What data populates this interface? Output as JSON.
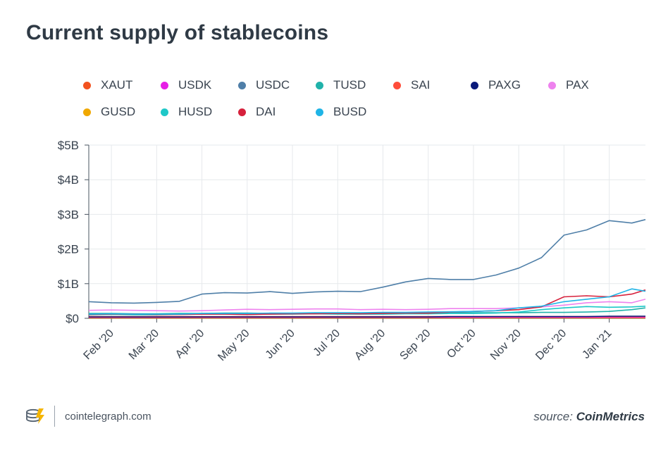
{
  "header": {
    "title": "Current supply of stablecoins"
  },
  "footer": {
    "brand": "cointelegraph.com",
    "source_prefix": "source:",
    "source_name": "CoinMetrics"
  },
  "chart_data": {
    "type": "line",
    "title": "Current supply of stablecoins",
    "xlabel": "",
    "ylabel": "",
    "ylim": [
      0,
      5
    ],
    "y_unit": "billion USD",
    "yticks": [
      0,
      1,
      2,
      3,
      4,
      5
    ],
    "ytick_labels": [
      "$0",
      "$1B",
      "$2B",
      "$3B",
      "$4B",
      "$5B"
    ],
    "xlim": [
      0,
      12.3
    ],
    "xticks": [
      0.5,
      1.5,
      2.5,
      3.5,
      4.5,
      5.5,
      6.5,
      7.5,
      8.5,
      9.5,
      10.5,
      11.5
    ],
    "xtick_labels": [
      "Feb '20",
      "Mar '20",
      "Apr '20",
      "May '20",
      "Jun '20",
      "Jul '20",
      "Aug '20",
      "Sep '20",
      "Oct '20",
      "Nov '20",
      "Dec '20",
      "Jan '21"
    ],
    "grid": true,
    "legend_position": "top",
    "x": [
      0,
      0.5,
      1,
      1.5,
      2,
      2.5,
      3,
      3.5,
      4,
      4.5,
      5,
      5.5,
      6,
      6.5,
      7,
      7.5,
      8,
      8.5,
      9,
      9.5,
      10,
      10.5,
      11,
      11.5,
      12,
      12.3
    ],
    "series": [
      {
        "name": "XAUT",
        "color": "#f2521f",
        "values": [
          0.02,
          0.02,
          0.02,
          0.02,
          0.02,
          0.02,
          0.02,
          0.02,
          0.02,
          0.02,
          0.02,
          0.02,
          0.02,
          0.02,
          0.02,
          0.02,
          0.02,
          0.02,
          0.02,
          0.02,
          0.02,
          0.02,
          0.02,
          0.02,
          0.02,
          0.02
        ]
      },
      {
        "name": "USDK",
        "color": "#e61ee6",
        "values": [
          0.03,
          0.03,
          0.03,
          0.03,
          0.03,
          0.03,
          0.03,
          0.03,
          0.03,
          0.03,
          0.03,
          0.03,
          0.03,
          0.03,
          0.03,
          0.03,
          0.03,
          0.03,
          0.03,
          0.03,
          0.03,
          0.03,
          0.03,
          0.03,
          0.03,
          0.03
        ]
      },
      {
        "name": "USDC",
        "color": "#4f7fa8",
        "values": [
          0.48,
          0.45,
          0.44,
          0.46,
          0.49,
          0.7,
          0.74,
          0.73,
          0.77,
          0.72,
          0.76,
          0.78,
          0.77,
          0.9,
          1.05,
          1.15,
          1.12,
          1.12,
          1.25,
          1.45,
          1.75,
          2.4,
          2.55,
          2.82,
          2.75,
          2.85
        ]
      },
      {
        "name": "TUSD",
        "color": "#20b2aa",
        "values": [
          0.14,
          0.14,
          0.13,
          0.13,
          0.14,
          0.14,
          0.15,
          0.15,
          0.14,
          0.14,
          0.14,
          0.14,
          0.15,
          0.15,
          0.15,
          0.15,
          0.16,
          0.16,
          0.16,
          0.16,
          0.17,
          0.17,
          0.18,
          0.2,
          0.25,
          0.3
        ]
      },
      {
        "name": "SAI",
        "color": "#ff4d3a",
        "values": [
          0.05,
          0.05,
          0.05,
          0.05,
          0.05,
          0.05,
          0.05,
          0.05,
          0.05,
          0.05,
          0.05,
          0.05,
          0.05,
          0.05,
          0.05,
          0.05,
          0.05,
          0.05,
          0.05,
          0.05,
          0.05,
          0.05,
          0.05,
          0.05,
          0.05,
          0.05
        ]
      },
      {
        "name": "PAXG",
        "color": "#0a1a7a",
        "values": [
          0.04,
          0.04,
          0.04,
          0.04,
          0.04,
          0.04,
          0.04,
          0.04,
          0.04,
          0.04,
          0.04,
          0.04,
          0.04,
          0.04,
          0.04,
          0.04,
          0.05,
          0.05,
          0.05,
          0.05,
          0.05,
          0.05,
          0.05,
          0.06,
          0.06,
          0.06
        ]
      },
      {
        "name": "PAX",
        "color": "#ee82ee",
        "values": [
          0.23,
          0.24,
          0.23,
          0.22,
          0.21,
          0.22,
          0.24,
          0.26,
          0.25,
          0.26,
          0.27,
          0.27,
          0.25,
          0.26,
          0.25,
          0.26,
          0.28,
          0.28,
          0.28,
          0.3,
          0.33,
          0.38,
          0.45,
          0.48,
          0.45,
          0.55
        ]
      },
      {
        "name": "GUSD",
        "color": "#f0a800",
        "values": [
          0.01,
          0.01,
          0.01,
          0.01,
          0.01,
          0.01,
          0.01,
          0.01,
          0.01,
          0.01,
          0.01,
          0.01,
          0.01,
          0.01,
          0.01,
          0.01,
          0.01,
          0.01,
          0.01,
          0.01,
          0.01,
          0.01,
          0.01,
          0.01,
          0.01,
          0.01
        ]
      },
      {
        "name": "HUSD",
        "color": "#1ec8c8",
        "values": [
          0.1,
          0.11,
          0.1,
          0.1,
          0.11,
          0.12,
          0.12,
          0.11,
          0.12,
          0.12,
          0.13,
          0.12,
          0.12,
          0.12,
          0.13,
          0.13,
          0.14,
          0.14,
          0.15,
          0.18,
          0.25,
          0.3,
          0.34,
          0.32,
          0.33,
          0.35
        ]
      },
      {
        "name": "DAI",
        "color": "#d6213c",
        "values": [
          0.11,
          0.12,
          0.12,
          0.11,
          0.11,
          0.12,
          0.12,
          0.11,
          0.12,
          0.13,
          0.13,
          0.14,
          0.13,
          0.14,
          0.15,
          0.15,
          0.18,
          0.2,
          0.22,
          0.25,
          0.33,
          0.62,
          0.65,
          0.62,
          0.7,
          0.82
        ]
      },
      {
        "name": "BUSD",
        "color": "#1fb4e6",
        "values": [
          0.12,
          0.13,
          0.12,
          0.12,
          0.12,
          0.14,
          0.14,
          0.14,
          0.15,
          0.15,
          0.16,
          0.16,
          0.16,
          0.17,
          0.17,
          0.18,
          0.19,
          0.2,
          0.22,
          0.3,
          0.35,
          0.48,
          0.55,
          0.62,
          0.85,
          0.78
        ]
      }
    ]
  }
}
